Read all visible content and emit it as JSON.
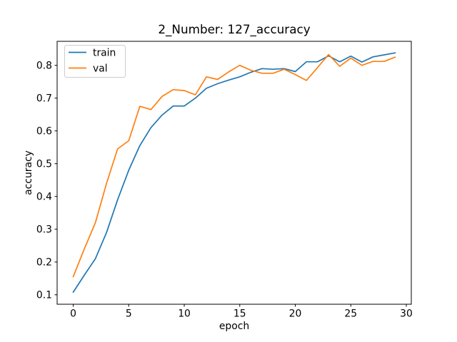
{
  "chart_data": {
    "type": "line",
    "title": "2_Number: 127_accuracy",
    "xlabel": "epoch",
    "ylabel": "accuracy",
    "x": [
      0,
      1,
      2,
      3,
      4,
      5,
      6,
      7,
      8,
      9,
      10,
      11,
      12,
      13,
      14,
      15,
      16,
      17,
      18,
      19,
      20,
      21,
      22,
      23,
      24,
      25,
      26,
      27,
      28,
      29
    ],
    "series": [
      {
        "name": "train",
        "color": "#1f77b4",
        "values": [
          0.108,
          0.16,
          0.21,
          0.29,
          0.39,
          0.48,
          0.555,
          0.61,
          0.648,
          0.676,
          0.676,
          0.7,
          0.73,
          0.744,
          0.755,
          0.765,
          0.779,
          0.79,
          0.788,
          0.79,
          0.781,
          0.811,
          0.811,
          0.829,
          0.811,
          0.828,
          0.81,
          0.826,
          0.832,
          0.838
        ]
      },
      {
        "name": "val",
        "color": "#ff7f0e",
        "values": [
          0.155,
          0.24,
          0.32,
          0.44,
          0.545,
          0.57,
          0.675,
          0.665,
          0.705,
          0.726,
          0.723,
          0.71,
          0.765,
          0.757,
          0.78,
          0.8,
          0.785,
          0.776,
          0.776,
          0.788,
          0.772,
          0.754,
          0.793,
          0.833,
          0.797,
          0.822,
          0.8,
          0.812,
          0.812,
          0.825
        ]
      }
    ],
    "xticks": [
      0,
      5,
      10,
      15,
      20,
      25,
      30
    ],
    "xtick_labels": [
      "0",
      "5",
      "10",
      "15",
      "20",
      "25",
      "30"
    ],
    "yticks": [
      0.1,
      0.2,
      0.3,
      0.4,
      0.5,
      0.6,
      0.7,
      0.8
    ],
    "ytick_labels": [
      "0.1",
      "0.2",
      "0.3",
      "0.4",
      "0.5",
      "0.6",
      "0.7",
      "0.8"
    ],
    "xlim": [
      -1.45,
      30.45
    ],
    "ylim": [
      0.0712,
      0.8733
    ],
    "grid": false,
    "legend": {
      "position": "upper left",
      "entries": [
        "train",
        "val"
      ],
      "border_color": "#cccccc",
      "background": "#ffffff"
    },
    "axis_color": "#000000"
  }
}
